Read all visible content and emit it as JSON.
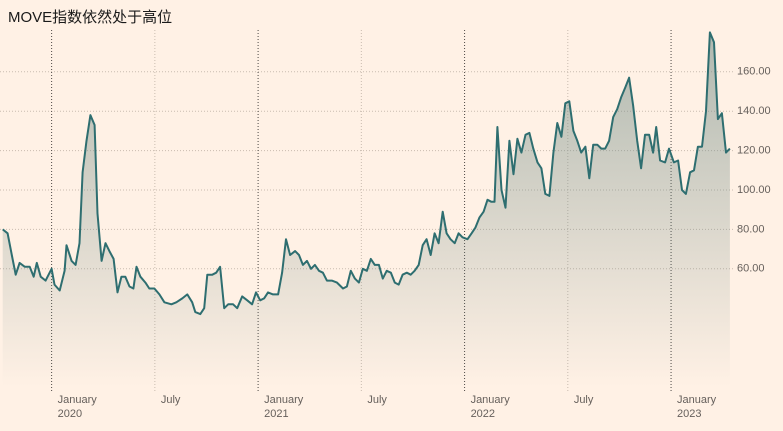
{
  "chart_data": {
    "type": "area",
    "title": "MOVE指数依然处于高位",
    "xlim": [
      2019.75,
      2023.3
    ],
    "ylim": [
      0,
      180
    ],
    "yticks": [
      {
        "value": 60,
        "label": "60.00"
      },
      {
        "value": 80,
        "label": "80.00"
      },
      {
        "value": 100,
        "label": "100.00"
      },
      {
        "value": 120,
        "label": "120.00"
      },
      {
        "value": 140,
        "label": "140.00"
      },
      {
        "value": 160,
        "label": "160.00"
      }
    ],
    "xticks": [
      {
        "value": 2020,
        "label": "January"
      },
      {
        "value": 2020.5,
        "label": "July"
      },
      {
        "value": 2021,
        "label": "January"
      },
      {
        "value": 2021.5,
        "label": "July"
      },
      {
        "value": 2022,
        "label": "January"
      },
      {
        "value": 2022.5,
        "label": "July"
      },
      {
        "value": 2023,
        "label": "January"
      }
    ],
    "year_labels": [
      2020,
      2021,
      2022,
      2023
    ],
    "grid": true,
    "color": "#2e6e70",
    "x": [
      2019.763,
      2019.787,
      2019.807,
      2019.826,
      2019.845,
      2019.87,
      2019.894,
      2019.913,
      2019.928,
      2019.947,
      2019.971,
      2020.0,
      2020.014,
      2020.039,
      2020.063,
      2020.072,
      2020.097,
      2020.116,
      2020.135,
      2020.15,
      2020.169,
      2020.188,
      2020.208,
      2020.222,
      2020.242,
      2020.261,
      2020.28,
      2020.3,
      2020.319,
      2020.338,
      2020.357,
      2020.377,
      2020.396,
      2020.411,
      2020.43,
      2020.454,
      2020.473,
      2020.498,
      2020.522,
      2020.546,
      2020.58,
      2020.604,
      2020.633,
      2020.657,
      2020.681,
      2020.696,
      2020.72,
      2020.739,
      2020.754,
      2020.778,
      2020.797,
      2020.816,
      2020.836,
      2020.855,
      2020.879,
      2020.899,
      2020.923,
      2020.947,
      2020.971,
      2020.99,
      2021.01,
      2021.029,
      2021.048,
      2021.072,
      2021.097,
      2021.116,
      2021.135,
      2021.155,
      2021.179,
      2021.198,
      2021.217,
      2021.237,
      2021.256,
      2021.275,
      2021.295,
      2021.314,
      2021.333,
      2021.357,
      2021.382,
      2021.411,
      2021.43,
      2021.449,
      2021.469,
      2021.488,
      2021.507,
      2021.527,
      2021.546,
      2021.565,
      2021.585,
      2021.604,
      2021.623,
      2021.643,
      2021.662,
      2021.681,
      2021.7,
      2021.72,
      2021.739,
      2021.758,
      2021.778,
      2021.797,
      2021.816,
      2021.836,
      2021.855,
      2021.874,
      2021.894,
      2021.913,
      2021.932,
      2021.952,
      2021.971,
      2021.99,
      2022.014,
      2022.034,
      2022.053,
      2022.072,
      2022.092,
      2022.111,
      2022.13,
      2022.145,
      2022.159,
      2022.179,
      2022.198,
      2022.217,
      2022.237,
      2022.256,
      2022.275,
      2022.295,
      2022.314,
      2022.333,
      2022.353,
      2022.372,
      2022.391,
      2022.411,
      2022.43,
      2022.449,
      2022.469,
      2022.488,
      2022.507,
      2022.527,
      2022.546,
      2022.565,
      2022.585,
      2022.604,
      2022.623,
      2022.643,
      2022.662,
      2022.681,
      2022.7,
      2022.72,
      2022.739,
      2022.758,
      2022.778,
      2022.797,
      2022.816,
      2022.836,
      2022.855,
      2022.874,
      2022.894,
      2022.913,
      2022.928,
      2022.947,
      2022.971,
      2022.99,
      2023.014,
      2023.034,
      2023.053,
      2023.072,
      2023.092,
      2023.111,
      2023.13,
      2023.15,
      2023.169,
      2023.188,
      2023.208,
      2023.227,
      2023.246,
      2023.266,
      2023.285
    ],
    "values": [
      80,
      78,
      67,
      57,
      63,
      61,
      61,
      56,
      63,
      56,
      54,
      60,
      52,
      49,
      59,
      72,
      64,
      62,
      73,
      109,
      125,
      138,
      133,
      88,
      64,
      73,
      69,
      65,
      48,
      56,
      56,
      51,
      50,
      61,
      56,
      53,
      50,
      50,
      47,
      43,
      42,
      43,
      45,
      47,
      43,
      38,
      37,
      40,
      57,
      57,
      58,
      61,
      40,
      42,
      42,
      40,
      46,
      44,
      42,
      48,
      44,
      45,
      48,
      47,
      47,
      58,
      75,
      67,
      69,
      67,
      62,
      64,
      60,
      62,
      59,
      58,
      54,
      54,
      53,
      50,
      51,
      59,
      55,
      53,
      60,
      59,
      65,
      62,
      62,
      55,
      59,
      58,
      53,
      52,
      57,
      58,
      57,
      59,
      62,
      72,
      75,
      67,
      78,
      73,
      89,
      78,
      75,
      73,
      78,
      76,
      75,
      78,
      81,
      86,
      89,
      95,
      94,
      94,
      132,
      100,
      91,
      125,
      108,
      126,
      119,
      128,
      129,
      121,
      114,
      111,
      98,
      97,
      119,
      134,
      127,
      144,
      145,
      130,
      125,
      119,
      122,
      106,
      123,
      123,
      121,
      121,
      125,
      137,
      141,
      147,
      152,
      157,
      143,
      125,
      111,
      128,
      128,
      119,
      132,
      115,
      114,
      121,
      114,
      115,
      100,
      98,
      109,
      110,
      122,
      122,
      140,
      180,
      175,
      136,
      139,
      119,
      121
    ]
  }
}
